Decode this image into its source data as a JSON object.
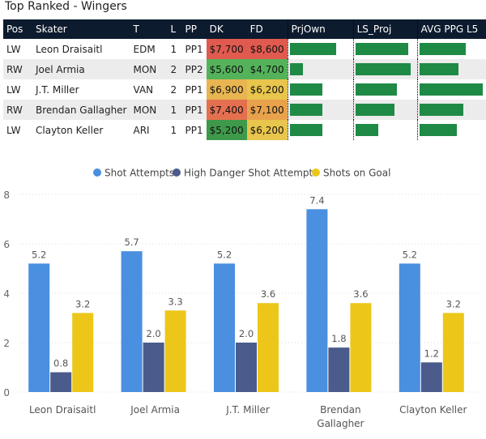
{
  "page_title": "Top Ranked - Wingers",
  "table": {
    "headers": [
      "Pos",
      "Skater",
      "T",
      "L",
      "PP",
      "DK",
      "FD",
      "PrjOwn",
      "LS_Proj",
      "AVG PPG L5"
    ],
    "rows": [
      {
        "pos": "LW",
        "skater": "Leon Draisaitl",
        "team": "EDM",
        "line": "1",
        "pp": "PP1",
        "dk": "$7,700",
        "fd": "$8,600",
        "dk_color": "#e05a50",
        "fd_color": "#e05a50",
        "prjown": 0.76,
        "ls_proj": 0.88,
        "avg_ppg": 0.72
      },
      {
        "pos": "RW",
        "skater": "Joel Armia",
        "team": "MON",
        "line": "2",
        "pp": "PP2",
        "dk": "$5,600",
        "fd": "$4,700",
        "dk_color": "#54b35a",
        "fd_color": "#54b35a",
        "prjown": 0.22,
        "ls_proj": 0.92,
        "avg_ppg": 0.6
      },
      {
        "pos": "LW",
        "skater": "J.T. Miller",
        "team": "VAN",
        "line": "2",
        "pp": "PP1",
        "dk": "$6,900",
        "fd": "$6,200",
        "dk_color": "#e8b550",
        "fd_color": "#e8c54c",
        "prjown": 0.53,
        "ls_proj": 0.7,
        "avg_ppg": 0.97
      },
      {
        "pos": "RW",
        "skater": "Brendan Gallagher",
        "team": "MON",
        "line": "1",
        "pp": "PP1",
        "dk": "$7,400",
        "fd": "$7,100",
        "dk_color": "#e57050",
        "fd_color": "#e8a24c",
        "prjown": 0.53,
        "ls_proj": 0.66,
        "avg_ppg": 0.68
      },
      {
        "pos": "LW",
        "skater": "Clayton Keller",
        "team": "ARI",
        "line": "1",
        "pp": "PP1",
        "dk": "$5,200",
        "fd": "$6,200",
        "dk_color": "#3e9a4a",
        "fd_color": "#e8c54c",
        "prjown": 0.53,
        "ls_proj": 0.38,
        "avg_ppg": 0.58
      }
    ]
  },
  "chart_data": {
    "type": "bar",
    "categories": [
      "Leon Draisaitl",
      "Joel Armia",
      "J.T. Miller",
      "Brendan Gallagher",
      "Clayton Keller"
    ],
    "category_lines": [
      [
        "Leon Draisaitl"
      ],
      [
        "Joel Armia"
      ],
      [
        "J.T. Miller"
      ],
      [
        "Brendan",
        "Gallagher"
      ],
      [
        "Clayton Keller"
      ]
    ],
    "series": [
      {
        "name": "Shot Attempts",
        "color": "#4a8fe0",
        "values": [
          5.2,
          5.7,
          5.2,
          7.4,
          5.2
        ]
      },
      {
        "name": "High Danger Shot Attempts",
        "color": "#4a5b8c",
        "values": [
          0.8,
          2.0,
          2.0,
          1.8,
          1.2
        ]
      },
      {
        "name": "Shots on Goal",
        "color": "#ecc719",
        "values": [
          3.2,
          3.3,
          3.6,
          3.6,
          3.2
        ]
      }
    ],
    "data_labels": [
      [
        "5.2",
        "5.7",
        "5.2",
        "7.4",
        "5.2"
      ],
      [
        "0.8",
        "2.0",
        "2.0",
        "1.8",
        "1.2"
      ],
      [
        "3.2",
        "3.3",
        "3.6",
        "3.6",
        "3.2"
      ]
    ],
    "ylim": [
      0,
      8
    ],
    "yticks": [
      "0",
      "2",
      "4",
      "6",
      "8"
    ],
    "legend_position": "top-center"
  }
}
